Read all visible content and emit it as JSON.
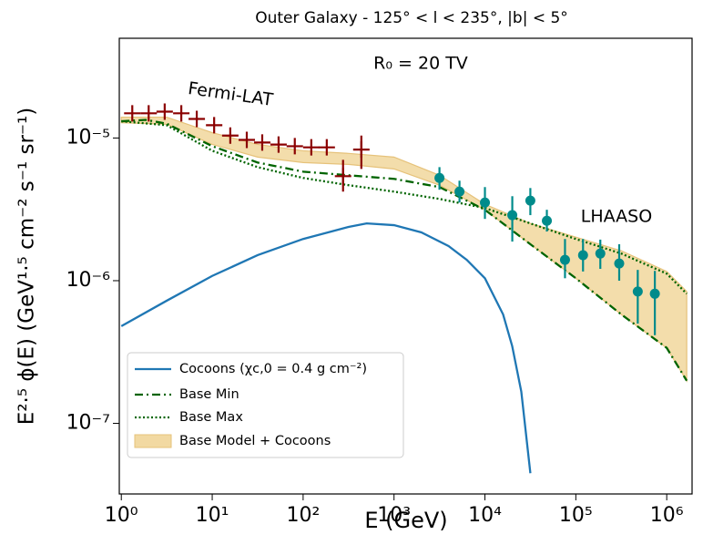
{
  "chart_data": {
    "type": "line",
    "title": "Outer Galaxy - 125° < l < 235°, |b| < 5°",
    "x_label": "E (GeV)",
    "y_label": "E²·⁵ ϕ(E) (GeV¹·⁵ cm⁻² s⁻¹ sr⁻¹)",
    "annotations": [
      "R₀ = 20 TV"
    ],
    "log_x": true,
    "log_y": true,
    "xlim": [
      0.95,
      1900000
    ],
    "ylim": [
      3.2e-08,
      5e-05
    ],
    "xticks": [
      {
        "value": 1,
        "label": "10⁰"
      },
      {
        "value": 10,
        "label": "10¹"
      },
      {
        "value": 100,
        "label": "10²"
      },
      {
        "value": 1000,
        "label": "10³"
      },
      {
        "value": 10000,
        "label": "10⁴"
      },
      {
        "value": 100000,
        "label": "10⁵"
      },
      {
        "value": 1000000,
        "label": "10⁶"
      }
    ],
    "yticks": [
      {
        "value": 1e-07,
        "label": "10⁻⁷"
      },
      {
        "value": 1e-06,
        "label": "10⁻⁶"
      },
      {
        "value": 1e-05,
        "label": "10⁻⁵"
      }
    ],
    "legend": "lower left",
    "series": [
      {
        "name": "Cocoons (χc,0 = 0.4 g cm⁻²)",
        "style": "solid",
        "color": "#1f77b4",
        "x": [
          1,
          3.16,
          10,
          31.6,
          100,
          316,
          500,
          1000,
          2000,
          3980,
          6310,
          10000,
          15850,
          19950,
          25120,
          31620
        ],
        "values": [
          4.8e-07,
          7.24e-07,
          1.08e-06,
          1.51e-06,
          1.96e-06,
          2.38e-06,
          2.52e-06,
          2.45e-06,
          2.18e-06,
          1.75e-06,
          1.4e-06,
          1.04e-06,
          5.8e-07,
          3.48e-07,
          1.67e-07,
          4.47e-08
        ]
      },
      {
        "name": "Base Min",
        "style": "dash-dot",
        "color": "#006400",
        "x": [
          1,
          1.86,
          3.16,
          10,
          31.6,
          100,
          316,
          1000,
          3162,
          10000,
          31620,
          100000,
          316200,
          1000000,
          1660000
        ],
        "values": [
          1.31e-05,
          1.34e-05,
          1.26e-05,
          8.77e-06,
          6.73e-06,
          5.81e-06,
          5.48e-06,
          5.17e-06,
          4.53e-06,
          3.14e-06,
          1.8e-06,
          1.04e-06,
          5.8e-07,
          3.38e-07,
          1.99e-07
        ]
      },
      {
        "name": "Base Max",
        "style": "dotted",
        "color": "#006400",
        "x": [
          1,
          3.16,
          10,
          31.6,
          100,
          316,
          1000,
          3162,
          10000,
          31620,
          100000,
          316200,
          1000000,
          1660000
        ],
        "values": [
          1.31e-05,
          1.23e-05,
          8.14e-06,
          6.25e-06,
          5.25e-06,
          4.67e-06,
          4.21e-06,
          3.74e-06,
          3.23e-06,
          2.52e-06,
          1.96e-06,
          1.55e-06,
          1.12e-06,
          8.1e-07
        ]
      },
      {
        "name": "Base Model + Cocoons",
        "style": "band",
        "color": "#f2d9a2",
        "x": [
          1,
          3.16,
          10,
          31.6,
          100,
          316,
          1000,
          3162,
          10000,
          31620,
          100000,
          316200,
          1000000,
          1660000
        ],
        "upper": [
          1.4e-05,
          1.4e-05,
          1.09e-05,
          9.02e-06,
          8.14e-06,
          7.8e-06,
          7.35e-06,
          5.48e-06,
          3.43e-06,
          2.52e-06,
          2.02e-06,
          1.62e-06,
          1.16e-06,
          8.4e-07
        ],
        "lower": [
          1.28e-05,
          1.25e-05,
          9.02e-06,
          7.35e-06,
          6.73e-06,
          6.53e-06,
          6.07e-06,
          4.67e-06,
          3.14e-06,
          1.8e-06,
          1.04e-06,
          5.8e-07,
          3.38e-07,
          1.99e-07
        ]
      },
      {
        "name": "Fermi-LAT",
        "style": "cross",
        "color": "#8b0000",
        "x": [
          1.32,
          2.0,
          3.0,
          4.57,
          6.76,
          10.5,
          15.8,
          24,
          35.5,
          53.7,
          81,
          123,
          182,
          275,
          437
        ],
        "values": [
          1.49e-05,
          1.49e-05,
          1.53e-05,
          1.49e-05,
          1.36e-05,
          1.23e-05,
          1.04e-05,
          9.7e-06,
          9.3e-06,
          9e-06,
          8.76e-06,
          8.6e-06,
          8.6e-06,
          5.4e-06,
          8.3e-06
        ],
        "lower": [
          null,
          null,
          null,
          null,
          null,
          null,
          null,
          null,
          null,
          null,
          null,
          null,
          null,
          4.21e-06,
          6.07e-06
        ],
        "upper": [
          null,
          null,
          null,
          null,
          null,
          null,
          null,
          null,
          null,
          null,
          null,
          null,
          null,
          7.03e-06,
          1.04e-05
        ]
      },
      {
        "name": "LHAASO",
        "style": "errorbar",
        "color": "#008b8b",
        "x": [
          3162,
          5250,
          10000,
          20000,
          31600,
          48000,
          76000,
          120000,
          186000,
          300000,
          480000,
          740000
        ],
        "values": [
          5.25e-06,
          4.21e-06,
          3.53e-06,
          2.88e-06,
          3.64e-06,
          2.63e-06,
          1.4e-06,
          1.51e-06,
          1.55e-06,
          1.32e-06,
          8.4e-07,
          8.1e-07
        ],
        "lower": [
          4.34e-06,
          3.53e-06,
          2.71e-06,
          1.88e-06,
          2.88e-06,
          2.21e-06,
          1.04e-06,
          1.16e-06,
          1.21e-06,
          1e-06,
          5e-07,
          4.15e-07
        ],
        "upper": [
          6.25e-06,
          5.02e-06,
          4.53e-06,
          3.91e-06,
          4.46e-06,
          3.14e-06,
          1.96e-06,
          1.96e-06,
          1.94e-06,
          1.8e-06,
          1.19e-06,
          1.17e-06
        ]
      }
    ]
  }
}
